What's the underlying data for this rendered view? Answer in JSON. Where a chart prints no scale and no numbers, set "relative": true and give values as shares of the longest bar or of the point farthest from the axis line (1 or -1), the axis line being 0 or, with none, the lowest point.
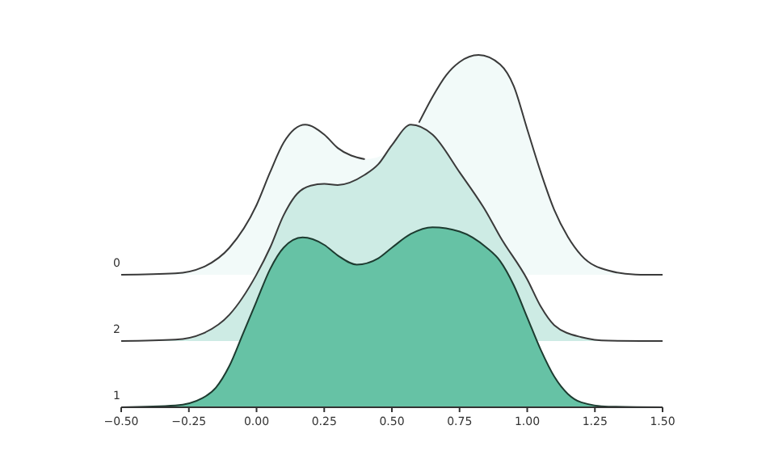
{
  "chart_data": {
    "type": "area",
    "relative": true,
    "tick_labels": "x",
    "legend": false,
    "xlim": [
      -0.5,
      1.5
    ],
    "xticks": [
      {
        "value": -0.5,
        "label": "−0.50"
      },
      {
        "value": -0.25,
        "label": "−0.25"
      },
      {
        "value": 0,
        "label": "0.00"
      },
      {
        "value": 0.25,
        "label": "0.25"
      },
      {
        "value": 0.5,
        "label": "0.50"
      },
      {
        "value": 0.75,
        "label": "0.75"
      },
      {
        "value": 1,
        "label": "1.00"
      },
      {
        "value": 1.25,
        "label": "1.25"
      },
      {
        "value": 1.5,
        "label": "1.50"
      }
    ],
    "series": [
      {
        "name": "0",
        "color": "#f2faf9",
        "x": [
          -0.5,
          -0.3,
          -0.2,
          -0.1,
          0,
          0.05,
          0.1,
          0.18,
          0.25,
          0.3,
          0.4,
          0.45,
          0.5,
          0.55,
          0.6,
          0.65,
          0.7,
          0.75,
          0.82,
          0.9,
          0.95,
          1.0,
          1.05,
          1.1,
          1.15,
          1.2,
          1.3,
          1.4,
          1.5
        ],
        "values": [
          0.376,
          0.38,
          0.397,
          0.453,
          0.574,
          0.667,
          0.751,
          0.802,
          0.774,
          0.736,
          0.704,
          null,
          null,
          null,
          0.808,
          0.881,
          0.942,
          0.98,
          1,
          0.973,
          0.912,
          0.789,
          0.667,
          0.56,
          0.484,
          0.431,
          0.388,
          0.377,
          0.376
        ]
      },
      {
        "name": "2",
        "color": "#cdebe4",
        "x": [
          -0.5,
          -0.3,
          -0.2,
          -0.1,
          0,
          0.05,
          0.1,
          0.15,
          0.2,
          0.25,
          0.3,
          0.4,
          0.45,
          0.5,
          0.57,
          0.65,
          0.75,
          0.85,
          0.9,
          1.0,
          1.05,
          1.1,
          1.2,
          1.3,
          1.5
        ],
        "values": [
          0.188,
          0.192,
          0.209,
          0.263,
          0.377,
          0.453,
          0.545,
          0.606,
          0.629,
          0.634,
          0.631,
          0.66,
          0.69,
          0.744,
          0.802,
          0.774,
          0.667,
          0.553,
          0.484,
          0.363,
          0.286,
          0.233,
          0.199,
          0.189,
          0.188
        ]
      },
      {
        "name": "1",
        "color": "#66c2a5",
        "x": [
          -0.5,
          -0.3,
          -0.2,
          -0.15,
          -0.1,
          -0.05,
          0,
          0.05,
          0.1,
          0.17,
          0.25,
          0.3,
          0.37,
          0.45,
          0.5,
          0.57,
          0.65,
          0.75,
          0.85,
          0.9,
          0.95,
          1.0,
          1.05,
          1.1,
          1.15,
          1.2,
          1.3,
          1.5
        ],
        "values": [
          0,
          0.005,
          0.026,
          0.056,
          0.118,
          0.209,
          0.301,
          0.392,
          0.453,
          0.482,
          0.461,
          0.431,
          0.405,
          0.423,
          0.453,
          0.492,
          0.511,
          0.499,
          0.453,
          0.415,
          0.347,
          0.255,
          0.163,
          0.087,
          0.038,
          0.014,
          0.002,
          0
        ]
      }
    ]
  }
}
